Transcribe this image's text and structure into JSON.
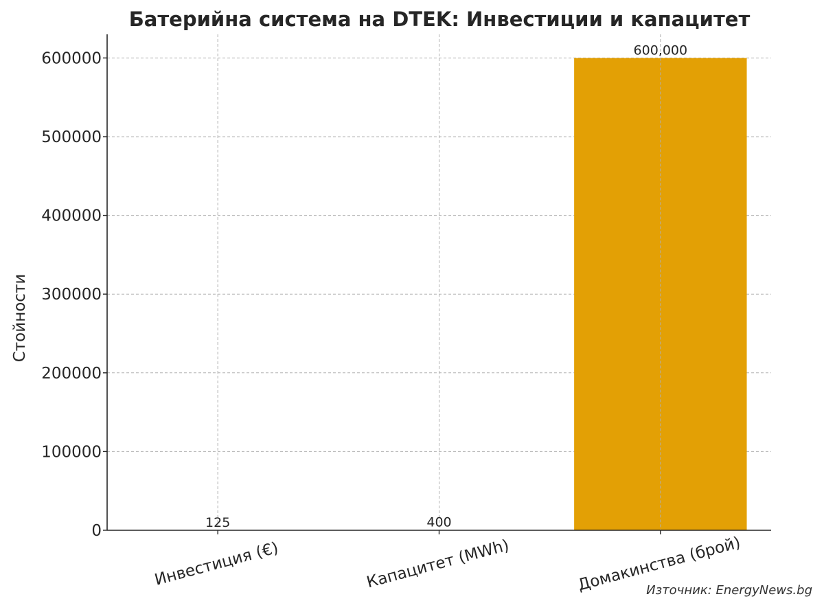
{
  "chart_data": {
    "type": "bar",
    "title": "Батерийна система на DTEK: Инвестиции и капацитет",
    "xlabel": "",
    "ylabel": "Стойности",
    "categories": [
      "Инвестиция (€)",
      "Капацитет (MWh)",
      "Домакинства (брой)"
    ],
    "values": [
      125,
      400,
      600000
    ],
    "value_labels": [
      "125",
      "400",
      "600,000"
    ],
    "ylim": [
      0,
      630000
    ],
    "yticks": [
      0,
      100000,
      200000,
      300000,
      400000,
      500000,
      600000
    ],
    "ytick_labels": [
      "0",
      "100000",
      "200000",
      "300000",
      "400000",
      "500000",
      "600000"
    ],
    "grid": true,
    "bar_color": "#E3A005",
    "x_tick_rotation_deg": -15
  },
  "source_note": "Източник: EnergyNews.bg"
}
